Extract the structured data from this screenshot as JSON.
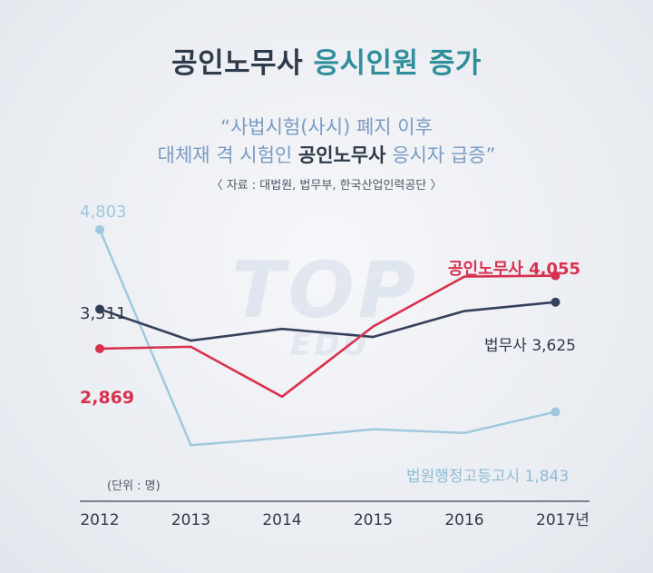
{
  "header": {
    "title_main": "공인노무사",
    "title_accent": "응시인원 증가",
    "subtitle_line1": "“사법시험(사시) 폐지 이후",
    "subtitle_line2_pre": "대체재 격 시험인 ",
    "subtitle_line2_hl": "공인노무사",
    "subtitle_line2_post": " 응시자 급증”",
    "source": "〈 자료 : 대법원, 법무부, 한국산업인력공단 〉"
  },
  "unit_note": "(단위 : 명)",
  "watermark": {
    "main": "TOP",
    "sub": "EDU"
  },
  "colors": {
    "labor": "#d8314f",
    "legal": "#35405a",
    "court": "#9ec8dc"
  },
  "chart_data": {
    "type": "line",
    "categories": [
      "2012",
      "2013",
      "2014",
      "2015",
      "2016",
      "2017년"
    ],
    "grid": false,
    "series": [
      {
        "key": "court",
        "name": "법원행정고등고시",
        "values": [
          4803,
          1300,
          1420,
          1560,
          1500,
          1843
        ],
        "start_label": "4,803",
        "end_label": "법원행정고등고시 1,843"
      },
      {
        "key": "legal",
        "name": "법무사",
        "values": [
          3511,
          3000,
          3190,
          3060,
          3480,
          3625
        ],
        "start_label": "3,511",
        "end_label": "법무사 3,625"
      },
      {
        "key": "labor",
        "name": "공인노무사",
        "values": [
          2869,
          2900,
          2090,
          3230,
          4040,
          4055
        ],
        "start_label": "2,869",
        "end_label": "공인노무사 4,055"
      }
    ]
  }
}
